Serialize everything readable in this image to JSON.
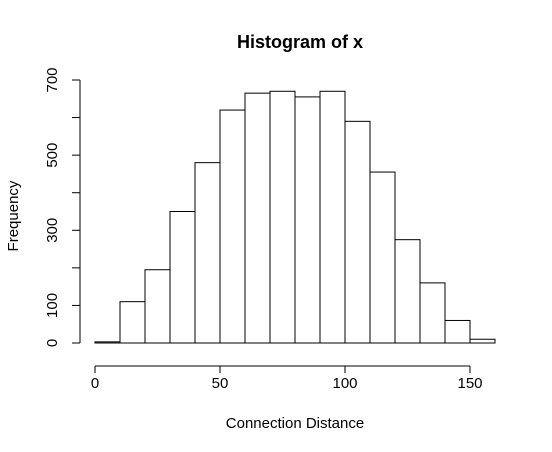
{
  "chart_data": {
    "type": "bar",
    "title": "Histogram of x",
    "xlabel": "Connection Distance",
    "ylabel": "Frequency",
    "bin_edges": [
      0,
      10,
      20,
      30,
      40,
      50,
      60,
      70,
      80,
      90,
      100,
      110,
      120,
      130,
      140,
      150,
      160
    ],
    "values": [
      3,
      110,
      195,
      350,
      480,
      620,
      665,
      670,
      655,
      670,
      590,
      455,
      275,
      160,
      60,
      10
    ],
    "xlim": [
      0,
      160
    ],
    "ylim": [
      0,
      700
    ],
    "x_ticks": [
      0,
      50,
      100,
      150
    ],
    "x_tick_labels": [
      "0",
      "50",
      "100",
      "150"
    ],
    "y_ticks": [
      0,
      100,
      200,
      300,
      400,
      500,
      600,
      700
    ],
    "y_tick_labels": [
      "0",
      "100",
      "",
      "300",
      "",
      "500",
      "",
      "700"
    ],
    "grid": false,
    "legend": "none",
    "bar_fill": "#ffffff",
    "bar_stroke": "#000000"
  }
}
